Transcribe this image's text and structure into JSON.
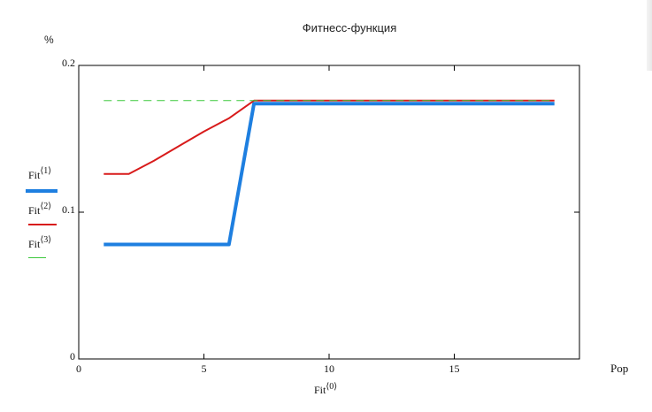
{
  "colors": {
    "fit1": "#1e7fe0",
    "fit2": "#d81b1b",
    "fit3": "#3cc83c",
    "axis": "#000000",
    "teal_overlay": "#2a9a8a"
  },
  "chart_data": {
    "type": "line",
    "title": "Фитнесс-функция",
    "ylabel": "%",
    "xlabel": "Pop",
    "x_expression": {
      "base": "Fit",
      "sup": "⟨0⟩"
    },
    "xlim": [
      0,
      20
    ],
    "ylim": [
      0,
      0.2
    ],
    "x_ticks": [
      "0",
      "5",
      "10",
      "15"
    ],
    "x_tick_values": [
      0,
      5,
      10,
      15
    ],
    "y_ticks": [
      "0",
      "0.1",
      "0.2"
    ],
    "y_tick_values": [
      0,
      0.1,
      0.2
    ],
    "grid": false,
    "legend_position": "left",
    "series": [
      {
        "name": "Fit⟨1⟩",
        "label_base": "Fit",
        "label_sup": "⟨1⟩",
        "style": "solid-thick",
        "x": [
          1,
          2,
          3,
          4,
          5,
          6,
          7,
          8,
          9,
          10,
          11,
          12,
          13,
          14,
          15,
          16,
          17,
          18,
          19
        ],
        "y": [
          0.078,
          0.078,
          0.078,
          0.078,
          0.078,
          0.078,
          0.174,
          0.174,
          0.174,
          0.174,
          0.174,
          0.174,
          0.174,
          0.174,
          0.174,
          0.174,
          0.174,
          0.174,
          0.174
        ]
      },
      {
        "name": "Fit⟨2⟩",
        "label_base": "Fit",
        "label_sup": "⟨2⟩",
        "style": "solid",
        "x": [
          1,
          2,
          3,
          4,
          5,
          6,
          7,
          8,
          9,
          10,
          11,
          12,
          13,
          14,
          15,
          16,
          17,
          18,
          19
        ],
        "y": [
          0.126,
          0.126,
          0.135,
          0.145,
          0.155,
          0.164,
          0.176,
          0.176,
          0.176,
          0.176,
          0.176,
          0.176,
          0.176,
          0.176,
          0.176,
          0.176,
          0.176,
          0.176,
          0.176
        ]
      },
      {
        "name": "Fit⟨3⟩",
        "label_base": "Fit",
        "label_sup": "⟨3⟩",
        "style": "dashed",
        "x": [
          1,
          19
        ],
        "y": [
          0.176,
          0.176
        ]
      }
    ]
  }
}
